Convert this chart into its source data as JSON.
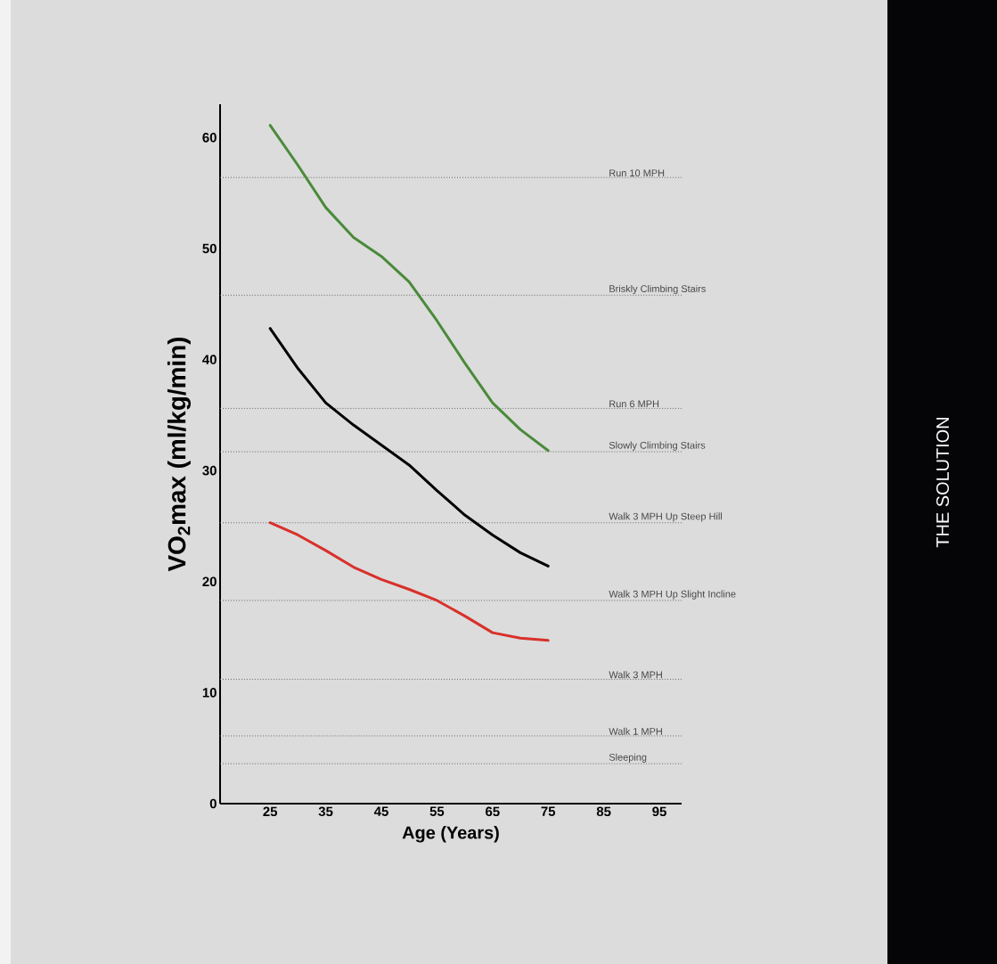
{
  "chart_data": {
    "type": "line",
    "xlabel": "Age (Years)",
    "ylabel": "VO$_{2}$max (ml/kg/min)",
    "x": [
      25,
      30,
      35,
      40,
      45,
      50,
      55,
      60,
      65,
      70,
      75
    ],
    "xlim": [
      16,
      99
    ],
    "xticks": [
      25,
      35,
      45,
      55,
      65,
      75,
      85,
      95
    ],
    "ylim": [
      0,
      63
    ],
    "yticks": [
      0,
      10,
      20,
      30,
      40,
      50,
      60
    ],
    "grid": false,
    "legend": false,
    "marker": "none",
    "line_style": "solid",
    "series": [
      {
        "color": "#4a8a3a",
        "values": [
          61.1,
          57.5,
          53.7,
          51.0,
          49.3,
          47.0,
          43.5,
          39.7,
          36.1,
          33.7,
          31.8
        ]
      },
      {
        "color": "#000000",
        "values": [
          42.8,
          39.2,
          36.1,
          34.1,
          32.3,
          30.5,
          28.2,
          26.0,
          24.2,
          22.6,
          21.4
        ]
      },
      {
        "color": "#d9302a",
        "values": [
          25.3,
          24.2,
          22.8,
          21.3,
          20.2,
          19.3,
          18.3,
          16.9,
          15.4,
          14.9,
          14.7
        ]
      }
    ],
    "ref_lines": [
      {
        "axis": "y",
        "value": 56.4,
        "label": "Run 10 MPH",
        "color": "#666666",
        "line_style": "dotted"
      },
      {
        "axis": "y",
        "value": 45.8,
        "label": "Briskly Climbing Stairs",
        "color": "#666666",
        "line_style": "dotted"
      },
      {
        "axis": "y",
        "value": 35.6,
        "label": "Run 6 MPH",
        "color": "#666666",
        "line_style": "dotted"
      },
      {
        "axis": "y",
        "value": 31.7,
        "label": "Slowly Climbing Stairs",
        "color": "#666666",
        "line_style": "dotted"
      },
      {
        "axis": "y",
        "value": 25.3,
        "label": "Walk 3 MPH Up Steep Hill",
        "color": "#666666",
        "line_style": "dotted"
      },
      {
        "axis": "y",
        "value": 18.3,
        "label": "Walk 3 MPH Up Slight Incline",
        "color": "#666666",
        "line_style": "dotted"
      },
      {
        "axis": "y",
        "value": 11.2,
        "label": "Walk 3 MPH",
        "color": "#666666",
        "line_style": "dotted"
      },
      {
        "axis": "y",
        "value": 6.1,
        "label": "Walk 1 MPH",
        "color": "#666666",
        "line_style": "dotted"
      },
      {
        "axis": "y",
        "value": 3.6,
        "label": "Sleeping",
        "color": "#666666",
        "line_style": "dotted"
      }
    ],
    "annotations": [
      "THE SOLUTION"
    ]
  }
}
